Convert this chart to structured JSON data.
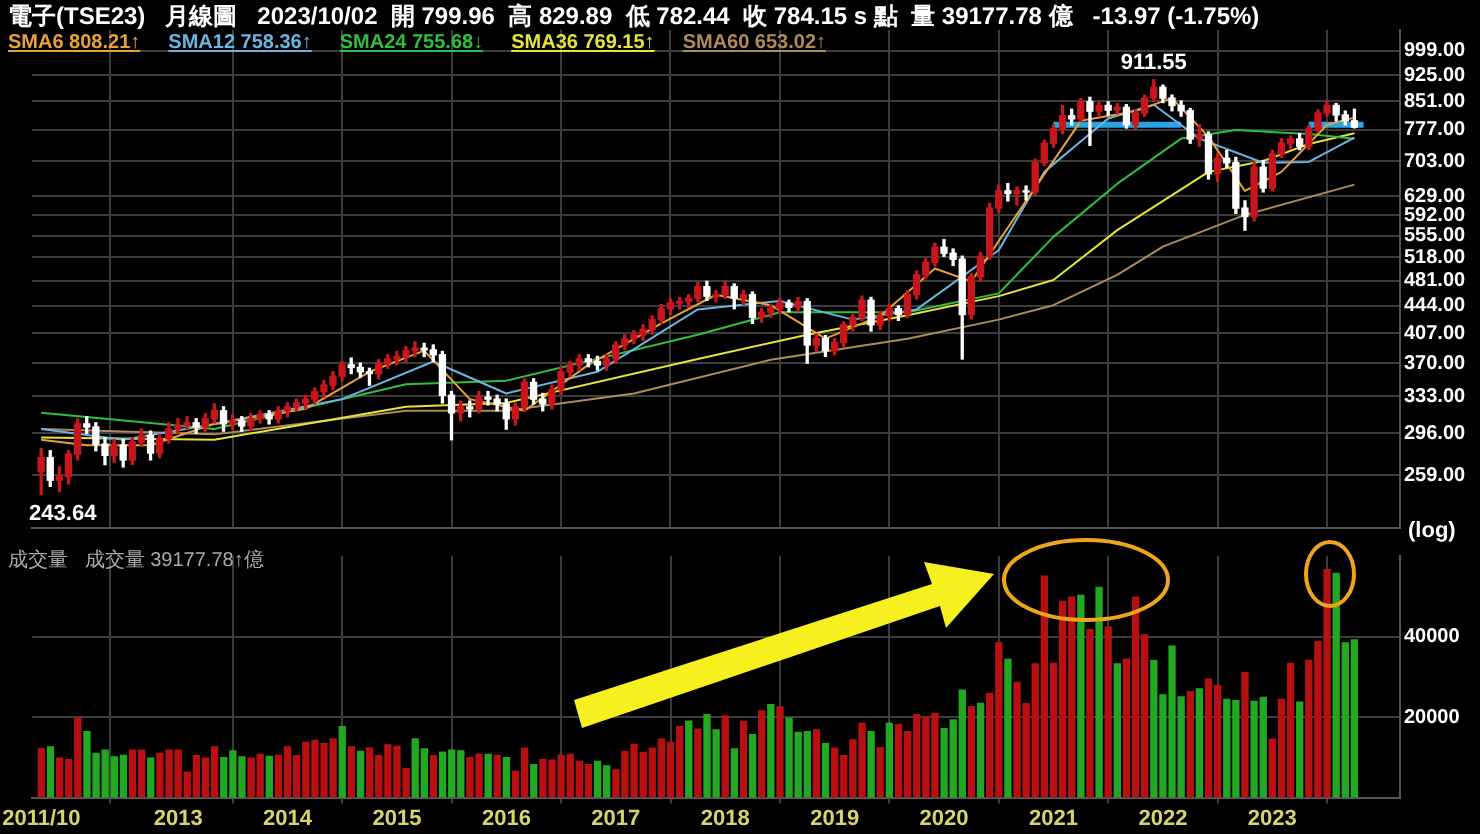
{
  "chart_data": [
    {
      "type": "candlestick",
      "title": "電子(TSE23)   月線圖   2023/10/02  開 799.96  高 829.89  低 782.44  收 784.15 s 點  量 39177.78 億   -13.97 (-1.75%)",
      "ylabel": "(log)",
      "legend": "top left",
      "log": true,
      "grid": true,
      "tick_labels": "y",
      "xlim": [
        "2011-09",
        "2024-03"
      ],
      "xticks": [
        "2011-10",
        "2013",
        "2014",
        "2015",
        "2016",
        "2017",
        "2018",
        "2019",
        "2020",
        "2021",
        "2022",
        "2023"
      ],
      "ylim": [
        219,
        1068
      ],
      "yticks": [
        {
          "value": 259,
          "label": "259.00"
        },
        {
          "value": 296,
          "label": "296.00"
        },
        {
          "value": 333,
          "label": "333.00"
        },
        {
          "value": 370,
          "label": "370.00"
        },
        {
          "value": 407,
          "label": "407.00"
        },
        {
          "value": 444,
          "label": "444.00"
        },
        {
          "value": 481,
          "label": "481.00"
        },
        {
          "value": 518,
          "label": "518.00"
        },
        {
          "value": 555,
          "label": "555.00"
        },
        {
          "value": 592,
          "label": "592.00"
        },
        {
          "value": 629,
          "label": "629.00"
        },
        {
          "value": 703,
          "label": "703.00"
        },
        {
          "value": 777,
          "label": "777.00"
        },
        {
          "value": 851,
          "label": "851.00"
        },
        {
          "value": 925,
          "label": "925.00"
        },
        {
          "value": 999,
          "label": "999.00"
        }
      ],
      "annotations": [
        {
          "text": "911.55",
          "x": "2021-12",
          "y": 911.55
        },
        {
          "text": "243.64",
          "x": "2011-10",
          "y": 243.64
        }
      ],
      "x": [
        "2011-10",
        "2011-11",
        "2011-12",
        "2012-01",
        "2012-02",
        "2012-03",
        "2012-04",
        "2012-05",
        "2012-06",
        "2012-07",
        "2012-08",
        "2012-09",
        "2012-10",
        "2012-11",
        "2012-12",
        "2013-01",
        "2013-02",
        "2013-03",
        "2013-04",
        "2013-05",
        "2013-06",
        "2013-07",
        "2013-08",
        "2013-09",
        "2013-10",
        "2013-11",
        "2013-12",
        "2014-01",
        "2014-02",
        "2014-03",
        "2014-04",
        "2014-05",
        "2014-06",
        "2014-07",
        "2014-08",
        "2014-09",
        "2014-10",
        "2014-11",
        "2014-12",
        "2015-01",
        "2015-02",
        "2015-03",
        "2015-04",
        "2015-05",
        "2015-06",
        "2015-07",
        "2015-08",
        "2015-09",
        "2015-10",
        "2015-11",
        "2015-12",
        "2016-01",
        "2016-02",
        "2016-03",
        "2016-04",
        "2016-05",
        "2016-06",
        "2016-07",
        "2016-08",
        "2016-09",
        "2016-10",
        "2016-11",
        "2016-12",
        "2017-01",
        "2017-02",
        "2017-03",
        "2017-04",
        "2017-05",
        "2017-06",
        "2017-07",
        "2017-08",
        "2017-09",
        "2017-10",
        "2017-11",
        "2017-12",
        "2018-01",
        "2018-02",
        "2018-03",
        "2018-04",
        "2018-05",
        "2018-06",
        "2018-07",
        "2018-08",
        "2018-09",
        "2018-10",
        "2018-11",
        "2018-12",
        "2019-01",
        "2019-02",
        "2019-03",
        "2019-04",
        "2019-05",
        "2019-06",
        "2019-07",
        "2019-08",
        "2019-09",
        "2019-10",
        "2019-11",
        "2019-12",
        "2020-01",
        "2020-02",
        "2020-03",
        "2020-04",
        "2020-05",
        "2020-06",
        "2020-07",
        "2020-08",
        "2020-09",
        "2020-10",
        "2020-11",
        "2020-12",
        "2021-01",
        "2021-02",
        "2021-03",
        "2021-04",
        "2021-05",
        "2021-06",
        "2021-07",
        "2021-08",
        "2021-09",
        "2021-10",
        "2021-11",
        "2021-12",
        "2022-01",
        "2022-02",
        "2022-03",
        "2022-04",
        "2022-05",
        "2022-06",
        "2022-07",
        "2022-08",
        "2022-09",
        "2022-10",
        "2022-11",
        "2022-12",
        "2023-01",
        "2023-02",
        "2023-03",
        "2023-04",
        "2023-05",
        "2023-06",
        "2023-07",
        "2023-08",
        "2023-09",
        "2023-10"
      ],
      "ohlc": [
        [
          262,
          282,
          243.64,
          274
        ],
        [
          274,
          280,
          250,
          255
        ],
        [
          255,
          266,
          246,
          258
        ],
        [
          258,
          280,
          252,
          277
        ],
        [
          277,
          310,
          272,
          305
        ],
        [
          305,
          312,
          296,
          302
        ],
        [
          302,
          306,
          280,
          286
        ],
        [
          286,
          292,
          268,
          276
        ],
        [
          276,
          290,
          270,
          285
        ],
        [
          285,
          290,
          266,
          272
        ],
        [
          272,
          292,
          268,
          288
        ],
        [
          288,
          300,
          284,
          294
        ],
        [
          294,
          298,
          272,
          278
        ],
        [
          278,
          295,
          274,
          291
        ],
        [
          291,
          306,
          287,
          300
        ],
        [
          300,
          310,
          296,
          304
        ],
        [
          304,
          312,
          300,
          306
        ],
        [
          306,
          310,
          296,
          302
        ],
        [
          302,
          315,
          298,
          310
        ],
        [
          310,
          325,
          306,
          318
        ],
        [
          318,
          322,
          298,
          305
        ],
        [
          305,
          314,
          300,
          308
        ],
        [
          308,
          312,
          298,
          303
        ],
        [
          303,
          315,
          299,
          310
        ],
        [
          310,
          318,
          306,
          314
        ],
        [
          314,
          318,
          305,
          310
        ],
        [
          310,
          322,
          306,
          318
        ],
        [
          318,
          326,
          312,
          322
        ],
        [
          322,
          330,
          318,
          326
        ],
        [
          326,
          334,
          320,
          330
        ],
        [
          330,
          342,
          325,
          338
        ],
        [
          338,
          350,
          332,
          345
        ],
        [
          345,
          360,
          340,
          355
        ],
        [
          355,
          372,
          350,
          368
        ],
        [
          368,
          376,
          358,
          365
        ],
        [
          365,
          370,
          354,
          360
        ],
        [
          360,
          364,
          345,
          358
        ],
        [
          358,
          374,
          352,
          370
        ],
        [
          370,
          380,
          364,
          375
        ],
        [
          375,
          384,
          368,
          378
        ],
        [
          378,
          390,
          372,
          385
        ],
        [
          385,
          396,
          378,
          388
        ],
        [
          388,
          394,
          378,
          386
        ],
        [
          386,
          392,
          372,
          380
        ],
        [
          380,
          384,
          326,
          334
        ],
        [
          334,
          338,
          290,
          316
        ],
        [
          316,
          328,
          308,
          322
        ],
        [
          322,
          328,
          312,
          320
        ],
        [
          320,
          338,
          316,
          332
        ],
        [
          332,
          338,
          324,
          330
        ],
        [
          330,
          334,
          318,
          325
        ],
        [
          325,
          330,
          300,
          310
        ],
        [
          310,
          326,
          304,
          322
        ],
        [
          322,
          352,
          318,
          348
        ],
        [
          348,
          352,
          325,
          330
        ],
        [
          330,
          336,
          318,
          325
        ],
        [
          325,
          345,
          320,
          340
        ],
        [
          340,
          365,
          335,
          360
        ],
        [
          360,
          372,
          355,
          368
        ],
        [
          368,
          380,
          362,
          375
        ],
        [
          375,
          380,
          366,
          372
        ],
        [
          372,
          378,
          362,
          368
        ],
        [
          368,
          380,
          362,
          375
        ],
        [
          375,
          396,
          370,
          392
        ],
        [
          392,
          405,
          386,
          400
        ],
        [
          400,
          410,
          394,
          405
        ],
        [
          405,
          418,
          398,
          412
        ],
        [
          412,
          430,
          406,
          425
        ],
        [
          425,
          446,
          420,
          440
        ],
        [
          440,
          454,
          432,
          448
        ],
        [
          448,
          456,
          440,
          450
        ],
        [
          450,
          460,
          442,
          455
        ],
        [
          455,
          478,
          450,
          472
        ],
        [
          472,
          480,
          452,
          458
        ],
        [
          458,
          466,
          450,
          460
        ],
        [
          460,
          480,
          455,
          472
        ],
        [
          472,
          476,
          440,
          455
        ],
        [
          455,
          466,
          446,
          460
        ],
        [
          460,
          464,
          420,
          428
        ],
        [
          428,
          440,
          422,
          435
        ],
        [
          435,
          446,
          428,
          440
        ],
        [
          440,
          455,
          434,
          448
        ],
        [
          448,
          452,
          436,
          442
        ],
        [
          442,
          456,
          436,
          450
        ],
        [
          450,
          454,
          370,
          392
        ],
        [
          392,
          406,
          384,
          400
        ],
        [
          400,
          404,
          378,
          385
        ],
        [
          385,
          400,
          380,
          395
        ],
        [
          395,
          422,
          390,
          418
        ],
        [
          418,
          432,
          410,
          428
        ],
        [
          428,
          458,
          424,
          452
        ],
        [
          452,
          456,
          410,
          418
        ],
        [
          418,
          436,
          412,
          430
        ],
        [
          430,
          446,
          424,
          440
        ],
        [
          440,
          444,
          424,
          432
        ],
        [
          432,
          466,
          428,
          460
        ],
        [
          460,
          496,
          454,
          490
        ],
        [
          490,
          516,
          484,
          510
        ],
        [
          510,
          542,
          504,
          535
        ],
        [
          535,
          548,
          520,
          525
        ],
        [
          525,
          532,
          505,
          515
        ],
        [
          515,
          520,
          375,
          432
        ],
        [
          432,
          492,
          426,
          487
        ],
        [
          487,
          526,
          480,
          520
        ],
        [
          520,
          615,
          515,
          606
        ],
        [
          606,
          652,
          598,
          640
        ],
        [
          640,
          655,
          620,
          635
        ],
        [
          635,
          648,
          612,
          640
        ],
        [
          640,
          650,
          622,
          638
        ],
        [
          638,
          708,
          632,
          700
        ],
        [
          700,
          752,
          694,
          745
        ],
        [
          745,
          790,
          736,
          780
        ],
        [
          780,
          840,
          768,
          813
        ],
        [
          813,
          830,
          790,
          805
        ],
        [
          805,
          858,
          798,
          850
        ],
        [
          850,
          862,
          740,
          825
        ],
        [
          825,
          848,
          812,
          840
        ],
        [
          840,
          850,
          815,
          828
        ],
        [
          828,
          845,
          818,
          835
        ],
        [
          835,
          842,
          782,
          790
        ],
        [
          790,
          828,
          780,
          820
        ],
        [
          820,
          868,
          812,
          860
        ],
        [
          860,
          911.55,
          852,
          890
        ],
        [
          890,
          896,
          848,
          860
        ],
        [
          860,
          868,
          826,
          840
        ],
        [
          840,
          852,
          812,
          826
        ],
        [
          826,
          832,
          745,
          755
        ],
        [
          755,
          790,
          738,
          765
        ],
        [
          765,
          772,
          665,
          676
        ],
        [
          676,
          720,
          660,
          710
        ],
        [
          710,
          728,
          690,
          700
        ],
        [
          700,
          712,
          596,
          606
        ],
        [
          606,
          620,
          565,
          590
        ],
        [
          590,
          700,
          582,
          690
        ],
        [
          690,
          705,
          638,
          646
        ],
        [
          646,
          728,
          640,
          720
        ],
        [
          720,
          756,
          712,
          745
        ],
        [
          745,
          762,
          732,
          755
        ],
        [
          755,
          768,
          730,
          738
        ],
        [
          738,
          788,
          730,
          780
        ],
        [
          780,
          828,
          772,
          820
        ],
        [
          820,
          852,
          812,
          840
        ],
        [
          840,
          845,
          800,
          815
        ],
        [
          815,
          825,
          790,
          799.96
        ],
        [
          799.96,
          829.89,
          782.44,
          784.15
        ]
      ],
      "colors": [
        "#c8161d",
        "#ffffff",
        "#c8161d",
        "#c8161d",
        "#c8161d",
        "#ffffff",
        "#ffffff",
        "#ffffff",
        "#c8161d",
        "#ffffff",
        "#c8161d",
        "#c8161d",
        "#ffffff",
        "#c8161d",
        "#c8161d",
        "#c8161d",
        "#c8161d",
        "#ffffff",
        "#c8161d",
        "#c8161d",
        "#ffffff",
        "#c8161d",
        "#ffffff",
        "#c8161d",
        "#c8161d",
        "#ffffff",
        "#c8161d",
        "#c8161d",
        "#c8161d",
        "#c8161d",
        "#c8161d",
        "#c8161d",
        "#c8161d",
        "#c8161d",
        "#ffffff",
        "#ffffff",
        "#ffffff",
        "#c8161d",
        "#c8161d",
        "#c8161d",
        "#c8161d",
        "#c8161d",
        "#ffffff",
        "#ffffff",
        "#ffffff",
        "#ffffff",
        "#c8161d",
        "#ffffff",
        "#c8161d",
        "#ffffff",
        "#ffffff",
        "#ffffff",
        "#c8161d",
        "#c8161d",
        "#ffffff",
        "#ffffff",
        "#c8161d",
        "#c8161d",
        "#c8161d",
        "#c8161d",
        "#ffffff",
        "#ffffff",
        "#c8161d",
        "#c8161d",
        "#c8161d",
        "#c8161d",
        "#c8161d",
        "#c8161d",
        "#c8161d",
        "#c8161d",
        "#c8161d",
        "#c8161d",
        "#c8161d",
        "#ffffff",
        "#c8161d",
        "#c8161d",
        "#ffffff",
        "#c8161d",
        "#ffffff",
        "#c8161d",
        "#c8161d",
        "#c8161d",
        "#ffffff",
        "#c8161d",
        "#ffffff",
        "#c8161d",
        "#ffffff",
        "#c8161d",
        "#c8161d",
        "#c8161d",
        "#c8161d",
        "#ffffff",
        "#c8161d",
        "#c8161d",
        "#ffffff",
        "#c8161d",
        "#c8161d",
        "#c8161d",
        "#c8161d",
        "#ffffff",
        "#ffffff",
        "#ffffff",
        "#c8161d",
        "#c8161d",
        "#c8161d",
        "#c8161d",
        "#ffffff",
        "#c8161d",
        "#ffffff",
        "#c8161d",
        "#c8161d",
        "#c8161d",
        "#c8161d",
        "#ffffff",
        "#c8161d",
        "#ffffff",
        "#c8161d",
        "#ffffff",
        "#c8161d",
        "#ffffff",
        "#c8161d",
        "#c8161d",
        "#c8161d",
        "#ffffff",
        "#ffffff",
        "#ffffff",
        "#ffffff",
        "#c8161d",
        "#ffffff",
        "#c8161d",
        "#ffffff",
        "#ffffff",
        "#ffffff",
        "#c8161d",
        "#ffffff",
        "#c8161d",
        "#c8161d",
        "#c8161d",
        "#ffffff",
        "#c8161d",
        "#c8161d",
        "#c8161d",
        "#ffffff",
        "#ffffff",
        "#ffffff"
      ],
      "series": [
        {
          "type": "line",
          "name": "SMA6 808.21↑",
          "color": "#e8a13a",
          "x": [
            "2011-10",
            "2012-03",
            "2012-10",
            "2013-05",
            "2014-03",
            "2014-10",
            "2015-04",
            "2015-09",
            "2016-03",
            "2016-10",
            "2017-06",
            "2017-12",
            "2018-06",
            "2018-12",
            "2019-06",
            "2019-12",
            "2020-04",
            "2020-10",
            "2021-04",
            "2021-10",
            "2022-02",
            "2022-06",
            "2022-10",
            "2023-02",
            "2023-07",
            "2023-10"
          ],
          "values": [
            290,
            285,
            285,
            305,
            320,
            360,
            385,
            330,
            318,
            368,
            420,
            460,
            445,
            400,
            430,
            500,
            480,
            620,
            800,
            825,
            860,
            760,
            640,
            680,
            790,
            808.21
          ]
        },
        {
          "type": "line",
          "name": "SMA12 758.36↑",
          "color": "#6cb4e0",
          "x": [
            "2011-10",
            "2012-07",
            "2013-05",
            "2014-07",
            "2015-05",
            "2016-01",
            "2016-11",
            "2017-10",
            "2018-07",
            "2019-03",
            "2019-10",
            "2020-07",
            "2020-12",
            "2021-07",
            "2021-12",
            "2022-05",
            "2022-12",
            "2023-05",
            "2023-10"
          ],
          "values": [
            300,
            290,
            305,
            330,
            372,
            336,
            360,
            439,
            451,
            425,
            439,
            530,
            680,
            806,
            842,
            756,
            700,
            702,
            758.36
          ]
        },
        {
          "type": "line",
          "name": "SMA24 755.68↓",
          "color": "#2fbf3f",
          "x": [
            "2011-10",
            "2013-05",
            "2015-02",
            "2016-01",
            "2017-10",
            "2018-07",
            "2019-09",
            "2020-07",
            "2021-01",
            "2021-08",
            "2022-03",
            "2022-09",
            "2023-05",
            "2023-10"
          ],
          "values": [
            316,
            300,
            346,
            350,
            405,
            435,
            435,
            462,
            553,
            655,
            756,
            777,
            767,
            755.68
          ]
        },
        {
          "type": "line",
          "name": "SMA36 769.15↑",
          "color": "#e6e43a",
          "x": [
            "2011-10",
            "2013-05",
            "2015-02",
            "2016-01",
            "2017-10",
            "2018-10",
            "2019-09",
            "2020-07",
            "2021-01",
            "2021-08",
            "2022-06",
            "2022-12",
            "2023-05",
            "2023-10"
          ],
          "values": [
            292,
            290,
            322,
            326,
            375,
            405,
            431,
            458,
            482,
            565,
            680,
            704,
            743,
            769.15
          ]
        },
        {
          "type": "line",
          "name": "SMA60 653.02↑",
          "color": "#b08a5a",
          "x": [
            "2011-10",
            "2013-05",
            "2015-02",
            "2016-01",
            "2017-03",
            "2018-06",
            "2019-09",
            "2020-07",
            "2021-01",
            "2021-08",
            "2022-01",
            "2022-10",
            "2023-10"
          ],
          "values": [
            300,
            295,
            318,
            318,
            336,
            374,
            400,
            425,
            445,
            490,
            536,
            593,
            653.02
          ]
        },
        {
          "type": "line",
          "color": "#29a3e6",
          "x": [
            "2021-01",
            "2022-03",
            "2022-09",
            "2023-05",
            "2023-11"
          ],
          "values": [
            790,
            790,
            null,
            790,
            790
          ]
        }
      ]
    },
    {
      "type": "bar",
      "title": "成交量   成交量 39177.78↑億",
      "grid": true,
      "xlim": [
        "2011-09",
        "2024-03"
      ],
      "xticks": [
        {
          "value": "2011-10",
          "label": "2011/10"
        },
        "2013",
        "2014",
        "2015",
        "2016",
        "2017",
        "2018",
        "2019",
        "2020",
        "2021",
        "2022",
        "2023"
      ],
      "ylim": [
        0,
        60000
      ],
      "yticks": [
        20000,
        40000
      ],
      "x": [
        "2011-10",
        "2011-11",
        "2011-12",
        "2012-01",
        "2012-02",
        "2012-03",
        "2012-04",
        "2012-05",
        "2012-06",
        "2012-07",
        "2012-08",
        "2012-09",
        "2012-10",
        "2012-11",
        "2012-12",
        "2013-01",
        "2013-02",
        "2013-03",
        "2013-04",
        "2013-05",
        "2013-06",
        "2013-07",
        "2013-08",
        "2013-09",
        "2013-10",
        "2013-11",
        "2013-12",
        "2014-01",
        "2014-02",
        "2014-03",
        "2014-04",
        "2014-05",
        "2014-06",
        "2014-07",
        "2014-08",
        "2014-09",
        "2014-10",
        "2014-11",
        "2014-12",
        "2015-01",
        "2015-02",
        "2015-03",
        "2015-04",
        "2015-05",
        "2015-06",
        "2015-07",
        "2015-08",
        "2015-09",
        "2015-10",
        "2015-11",
        "2015-12",
        "2016-01",
        "2016-02",
        "2016-03",
        "2016-04",
        "2016-05",
        "2016-06",
        "2016-07",
        "2016-08",
        "2016-09",
        "2016-10",
        "2016-11",
        "2016-12",
        "2017-01",
        "2017-02",
        "2017-03",
        "2017-04",
        "2017-05",
        "2017-06",
        "2017-07",
        "2017-08",
        "2017-09",
        "2017-10",
        "2017-11",
        "2017-12",
        "2018-01",
        "2018-02",
        "2018-03",
        "2018-04",
        "2018-05",
        "2018-06",
        "2018-07",
        "2018-08",
        "2018-09",
        "2018-10",
        "2018-11",
        "2018-12",
        "2019-01",
        "2019-02",
        "2019-03",
        "2019-04",
        "2019-05",
        "2019-06",
        "2019-07",
        "2019-08",
        "2019-09",
        "2019-10",
        "2019-11",
        "2019-12",
        "2020-01",
        "2020-02",
        "2020-03",
        "2020-04",
        "2020-05",
        "2020-06",
        "2020-07",
        "2020-08",
        "2020-09",
        "2020-10",
        "2020-11",
        "2020-12",
        "2021-01",
        "2021-02",
        "2021-03",
        "2021-04",
        "2021-05",
        "2021-06",
        "2021-07",
        "2021-08",
        "2021-09",
        "2021-10",
        "2021-11",
        "2021-12",
        "2022-01",
        "2022-02",
        "2022-03",
        "2022-04",
        "2022-05",
        "2022-06",
        "2022-07",
        "2022-08",
        "2022-09",
        "2022-10",
        "2022-11",
        "2022-12",
        "2023-01",
        "2023-02",
        "2023-03",
        "2023-04",
        "2023-05",
        "2023-06",
        "2023-07",
        "2023-08",
        "2023-09",
        "2023-10"
      ],
      "values": [
        12100,
        12600,
        9800,
        9400,
        19700,
        16400,
        11000,
        11800,
        10100,
        10500,
        11800,
        11800,
        9800,
        11000,
        11800,
        11800,
        6300,
        10400,
        9800,
        12600,
        9900,
        11600,
        10100,
        9800,
        10700,
        10200,
        10500,
        12600,
        10400,
        13700,
        14200,
        13400,
        14600,
        17600,
        12600,
        11500,
        12300,
        10400,
        13100,
        12700,
        7200,
        14600,
        12100,
        10400,
        11300,
        11800,
        11600,
        9900,
        10700,
        10700,
        10500,
        9900,
        6500,
        12300,
        8200,
        9400,
        9300,
        10500,
        10700,
        9000,
        8200,
        9000,
        7900,
        6900,
        11500,
        13200,
        11200,
        12300,
        14500,
        13700,
        17600,
        19000,
        17000,
        20600,
        16800,
        20300,
        12100,
        18900,
        15600,
        21500,
        23100,
        22500,
        19700,
        16200,
        16400,
        16800,
        13400,
        12300,
        10400,
        14300,
        18400,
        16400,
        12400,
        18400,
        18100,
        16400,
        20600,
        20000,
        20900,
        17100,
        19300,
        26700,
        22600,
        23400,
        25900,
        38500,
        34300,
        28600,
        23300,
        33200,
        55000,
        33300,
        48700,
        49800,
        50200,
        41700,
        52200,
        42300,
        33200,
        34400,
        49800,
        40400,
        34100,
        25500,
        37600,
        25000,
        26300,
        27000,
        29400,
        27800,
        24400,
        24100,
        31000,
        23900,
        24900,
        14500,
        24400,
        33300,
        23700,
        34100,
        38700,
        56600,
        55700,
        38400,
        39177.78
      ],
      "colors": [
        "#b81010",
        "#22a822",
        "#b81010",
        "#b81010",
        "#b81010",
        "#22a822",
        "#22a822",
        "#22a822",
        "#22a822",
        "#22a822",
        "#b81010",
        "#b81010",
        "#22a822",
        "#b81010",
        "#b81010",
        "#b81010",
        "#b81010",
        "#b81010",
        "#b81010",
        "#b81010",
        "#22a822",
        "#22a822",
        "#22a822",
        "#b81010",
        "#b81010",
        "#22a822",
        "#b81010",
        "#b81010",
        "#b81010",
        "#b81010",
        "#b81010",
        "#b81010",
        "#b81010",
        "#22a822",
        "#b81010",
        "#22a822",
        "#b81010",
        "#b81010",
        "#b81010",
        "#b81010",
        "#b81010",
        "#22a822",
        "#22a822",
        "#b81010",
        "#22a822",
        "#22a822",
        "#22a822",
        "#b81010",
        "#b81010",
        "#22a822",
        "#b81010",
        "#22a822",
        "#b81010",
        "#b81010",
        "#22a822",
        "#b81010",
        "#b81010",
        "#b81010",
        "#b81010",
        "#b81010",
        "#b81010",
        "#22a822",
        "#22a822",
        "#b81010",
        "#b81010",
        "#b81010",
        "#b81010",
        "#b81010",
        "#b81010",
        "#b81010",
        "#b81010",
        "#22a822",
        "#b81010",
        "#22a822",
        "#22a822",
        "#b81010",
        "#22a822",
        "#b81010",
        "#22a822",
        "#b81010",
        "#22a822",
        "#b81010",
        "#22a822",
        "#22a822",
        "#22a822",
        "#b81010",
        "#22a822",
        "#b81010",
        "#b81010",
        "#b81010",
        "#b81010",
        "#22a822",
        "#b81010",
        "#22a822",
        "#b81010",
        "#b81010",
        "#b81010",
        "#b81010",
        "#b81010",
        "#22a822",
        "#22a822",
        "#22a822",
        "#b81010",
        "#22a822",
        "#b81010",
        "#b81010",
        "#22a822",
        "#b81010",
        "#b81010",
        "#b81010",
        "#b81010",
        "#b81010",
        "#b81010",
        "#b81010",
        "#22a822",
        "#b81010",
        "#22a822",
        "#b81010",
        "#22a822",
        "#b81010",
        "#b81010",
        "#b81010",
        "#22a822",
        "#22a822",
        "#22a822",
        "#22a822",
        "#b81010",
        "#22a822",
        "#b81010",
        "#b81010",
        "#22a822",
        "#22a822",
        "#b81010",
        "#22a822",
        "#22a822",
        "#b81010",
        "#b81010",
        "#b81010",
        "#22a822",
        "#b81010",
        "#b81010",
        "#b81010",
        "#22a822",
        "#22a822",
        "#22a822"
      ]
    }
  ]
}
